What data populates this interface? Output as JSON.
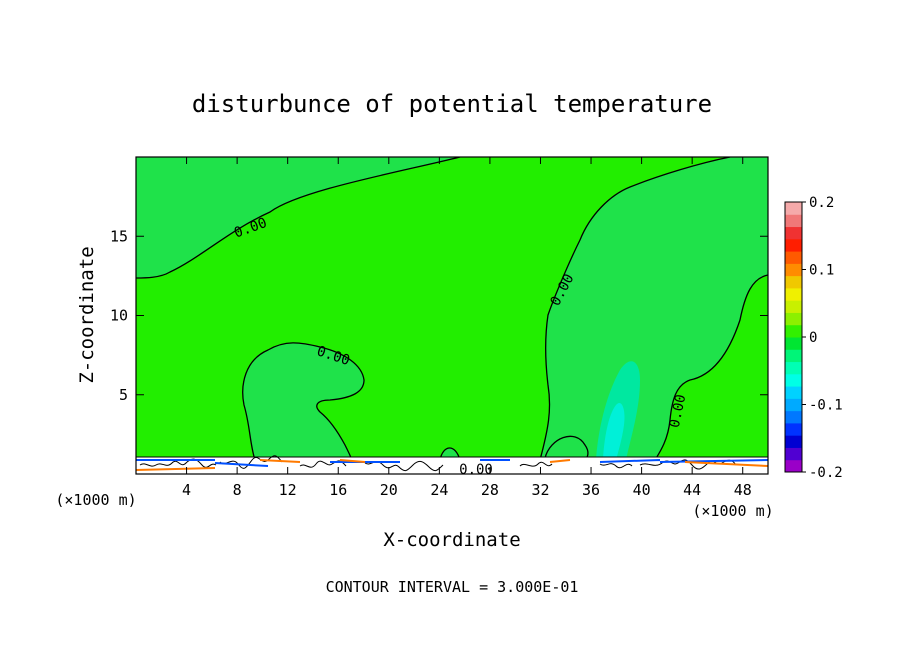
{
  "chart_data": {
    "type": "heatmap",
    "title": "disturbunce of potential temperature",
    "xlabel": "X-coordinate",
    "ylabel": "Z-coordinate",
    "x_unit": "(×1000 m)",
    "x_unit_right": "(×1000 m)",
    "xlim": [
      0,
      50
    ],
    "ylim": [
      0,
      20
    ],
    "x_ticks": [
      4,
      8,
      12,
      16,
      20,
      24,
      28,
      32,
      36,
      40,
      44,
      48
    ],
    "y_ticks": [
      5,
      10,
      15
    ],
    "contour_interval_text": "CONTOUR INTERVAL = 3.000E-01",
    "contour_labels": [
      "0.00",
      "0.00",
      "0.00",
      "0.00",
      "0.00"
    ],
    "colorbar": {
      "min": -0.2,
      "max": 0.2,
      "tick_labels": [
        "0.2",
        "0.1",
        "0",
        "-0.1",
        "-0.2"
      ],
      "tick_values": [
        0.2,
        0.1,
        0,
        -0.1,
        -0.2
      ],
      "colors": [
        "#9a00c8",
        "#5000d2",
        "#0000d2",
        "#0032ff",
        "#0078ff",
        "#00aaff",
        "#00d2ff",
        "#00ffe6",
        "#00ffb4",
        "#00f578",
        "#00e632",
        "#32f000",
        "#8cf000",
        "#c8f000",
        "#f0f000",
        "#f0c800",
        "#ff8c00",
        "#ff5a00",
        "#ff1e00",
        "#f03232",
        "#f07878",
        "#f5aaaa"
      ]
    },
    "field": {
      "background_value": 0.02,
      "background_color": "#22ee00",
      "regions": [
        {
          "name": "upper-left lobe",
          "value": 0.0,
          "color": "#1fe24a"
        },
        {
          "name": "left bubble",
          "value": 0.0,
          "color": "#1fe24a"
        },
        {
          "name": "right region",
          "value": 0.0,
          "color": "#1fe24a"
        },
        {
          "name": "cold plume",
          "value": -0.06,
          "color": "#00e8a0"
        },
        {
          "name": "cold plume core",
          "value": -0.08,
          "color": "#00f0d8"
        }
      ]
    }
  }
}
